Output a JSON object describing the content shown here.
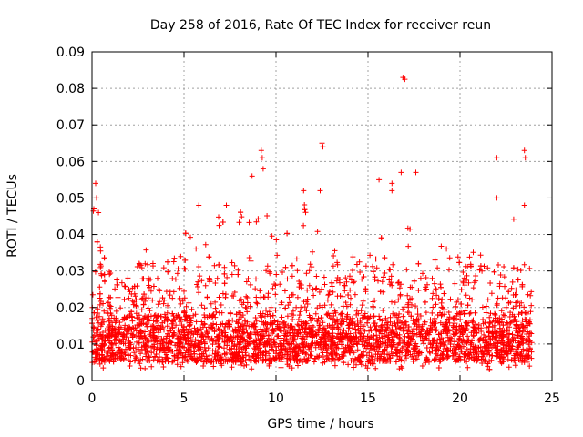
{
  "chart_data": {
    "type": "scatter",
    "title": "Day 258 of 2016, Rate Of TEC Index for receiver reun",
    "xlabel": "GPS time / hours",
    "ylabel": "ROTI / TECUs",
    "xlim": [
      0,
      25
    ],
    "ylim": [
      0,
      0.09
    ],
    "xticks": [
      0,
      5,
      10,
      15,
      20,
      25
    ],
    "xtick_labels": [
      "0",
      "5",
      "10",
      "15",
      "20",
      "25"
    ],
    "yticks": [
      0,
      0.01,
      0.02,
      0.03,
      0.04,
      0.05,
      0.06,
      0.07,
      0.08,
      0.09
    ],
    "ytick_labels": [
      "0",
      "0.01",
      "0.02",
      "0.03",
      "0.04",
      "0.05",
      "0.06",
      "0.07",
      "0.08",
      "0.09"
    ],
    "grid": true,
    "marker": "+",
    "series_color": "#ff0000",
    "x_span": [
      0.0,
      23.9
    ],
    "typical_band": [
      0.005,
      0.02
    ],
    "envelope": [
      {
        "x": 0.0,
        "y": 0.045
      },
      {
        "x": 0.2,
        "y": 0.054
      },
      {
        "x": 0.5,
        "y": 0.042
      },
      {
        "x": 1.0,
        "y": 0.03
      },
      {
        "x": 2.0,
        "y": 0.03
      },
      {
        "x": 3.0,
        "y": 0.037
      },
      {
        "x": 4.0,
        "y": 0.036
      },
      {
        "x": 5.0,
        "y": 0.041
      },
      {
        "x": 5.8,
        "y": 0.048
      },
      {
        "x": 6.5,
        "y": 0.037
      },
      {
        "x": 7.0,
        "y": 0.048
      },
      {
        "x": 8.0,
        "y": 0.05
      },
      {
        "x": 8.5,
        "y": 0.056
      },
      {
        "x": 9.0,
        "y": 0.05
      },
      {
        "x": 9.5,
        "y": 0.058
      },
      {
        "x": 10.0,
        "y": 0.041
      },
      {
        "x": 11.0,
        "y": 0.04
      },
      {
        "x": 11.5,
        "y": 0.052
      },
      {
        "x": 12.5,
        "y": 0.052
      },
      {
        "x": 13.0,
        "y": 0.037
      },
      {
        "x": 14.0,
        "y": 0.042
      },
      {
        "x": 15.0,
        "y": 0.042
      },
      {
        "x": 16.0,
        "y": 0.047
      },
      {
        "x": 16.5,
        "y": 0.045
      },
      {
        "x": 17.0,
        "y": 0.043
      },
      {
        "x": 18.0,
        "y": 0.04
      },
      {
        "x": 19.0,
        "y": 0.037
      },
      {
        "x": 20.0,
        "y": 0.04
      },
      {
        "x": 21.0,
        "y": 0.044
      },
      {
        "x": 22.0,
        "y": 0.049
      },
      {
        "x": 23.0,
        "y": 0.044
      },
      {
        "x": 23.9,
        "y": 0.035
      }
    ],
    "outliers": [
      {
        "x": 0.1,
        "y": 0.047
      },
      {
        "x": 0.2,
        "y": 0.054
      },
      {
        "x": 0.25,
        "y": 0.05
      },
      {
        "x": 0.35,
        "y": 0.046
      },
      {
        "x": 5.8,
        "y": 0.048
      },
      {
        "x": 7.3,
        "y": 0.048
      },
      {
        "x": 8.7,
        "y": 0.056
      },
      {
        "x": 9.2,
        "y": 0.063
      },
      {
        "x": 9.25,
        "y": 0.061
      },
      {
        "x": 9.3,
        "y": 0.058
      },
      {
        "x": 11.5,
        "y": 0.052
      },
      {
        "x": 12.4,
        "y": 0.052
      },
      {
        "x": 12.5,
        "y": 0.065
      },
      {
        "x": 12.55,
        "y": 0.064
      },
      {
        "x": 15.6,
        "y": 0.055
      },
      {
        "x": 16.3,
        "y": 0.054
      },
      {
        "x": 16.3,
        "y": 0.052
      },
      {
        "x": 16.8,
        "y": 0.057
      },
      {
        "x": 16.9,
        "y": 0.083
      },
      {
        "x": 17.0,
        "y": 0.0825
      },
      {
        "x": 17.6,
        "y": 0.057
      },
      {
        "x": 22.0,
        "y": 0.061
      },
      {
        "x": 22.0,
        "y": 0.05
      },
      {
        "x": 23.5,
        "y": 0.063
      },
      {
        "x": 23.55,
        "y": 0.061
      },
      {
        "x": 23.5,
        "y": 0.048
      }
    ]
  }
}
